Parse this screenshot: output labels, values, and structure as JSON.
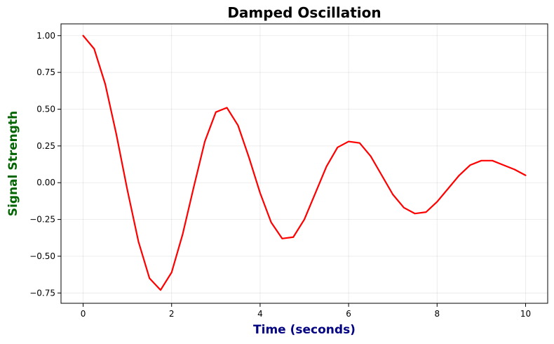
{
  "chart_data": {
    "type": "line",
    "title": "Damped Oscillation",
    "xlabel": "Time (seconds)",
    "ylabel": "Signal Strength",
    "xlim": [
      -0.5,
      10.5
    ],
    "ylim": [
      -0.82,
      1.08
    ],
    "grid": true,
    "xticks": [
      0,
      2,
      4,
      6,
      8,
      10
    ],
    "xtick_labels": [
      "0",
      "2",
      "4",
      "6",
      "8",
      "10"
    ],
    "yticks": [
      -0.75,
      -0.5,
      -0.25,
      0.0,
      0.25,
      0.5,
      0.75,
      1.0
    ],
    "ytick_labels": [
      "−0.75",
      "−0.50",
      "−0.25",
      "0.00",
      "0.25",
      "0.50",
      "0.75",
      "1.00"
    ],
    "series": [
      {
        "name": "signal",
        "color": "#ff0000",
        "x": [
          0.0,
          0.25,
          0.5,
          0.75,
          1.0,
          1.25,
          1.5,
          1.75,
          2.0,
          2.25,
          2.5,
          2.75,
          3.0,
          3.25,
          3.5,
          3.75,
          4.0,
          4.25,
          4.5,
          4.75,
          5.0,
          5.25,
          5.5,
          5.75,
          6.0,
          6.25,
          6.5,
          6.75,
          7.0,
          7.25,
          7.5,
          7.75,
          8.0,
          8.25,
          8.5,
          8.75,
          9.0,
          9.25,
          9.5,
          9.75,
          10.0
        ],
        "y": [
          1.0,
          0.91,
          0.67,
          0.33,
          -0.05,
          -0.4,
          -0.65,
          -0.73,
          -0.61,
          -0.35,
          -0.03,
          0.28,
          0.48,
          0.51,
          0.39,
          0.17,
          -0.07,
          -0.27,
          -0.38,
          -0.37,
          -0.25,
          -0.07,
          0.11,
          0.24,
          0.28,
          0.27,
          0.18,
          0.05,
          -0.08,
          -0.17,
          -0.21,
          -0.2,
          -0.13,
          -0.04,
          0.05,
          0.12,
          0.15,
          0.15,
          0.12,
          0.09,
          0.05
        ]
      }
    ]
  },
  "colors": {
    "line": "#ff0000",
    "xlabel": "#000080",
    "ylabel": "#006400"
  }
}
